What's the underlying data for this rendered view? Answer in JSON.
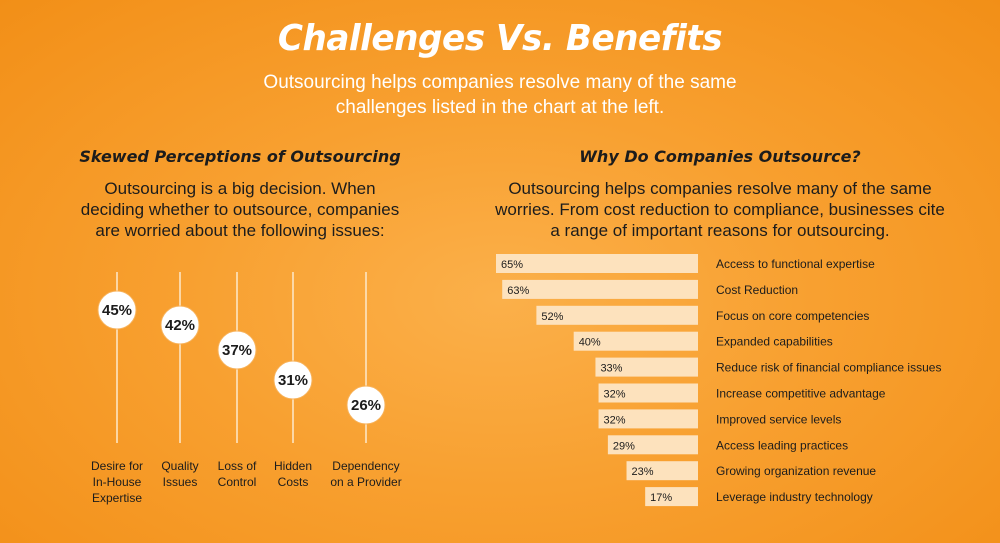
{
  "header": {
    "title": "Challenges Vs. Benefits",
    "subtitle_line1": "Outsourcing helps companies resolve many of the same",
    "subtitle_line2": "challenges listed in the chart at the left."
  },
  "left": {
    "title": "Skewed Perceptions of Outsourcing",
    "desc_line1": "Outsourcing is a big decision. When",
    "desc_line2": "deciding whether to outsource, companies",
    "desc_line3": "are worried about the following issues:"
  },
  "right": {
    "title": "Why Do Companies Outsource?",
    "desc_line1": "Outsourcing helps companies resolve many of the same",
    "desc_line2": "worries. From cost reduction to compliance, businesses cite",
    "desc_line3": "a range of important reasons for outsourcing."
  },
  "colors": {
    "bar_fill": "#fde2bd",
    "line": "#fde9cc",
    "bubble_fill": "#ffffff"
  },
  "chart_data": [
    {
      "type": "scatter",
      "title": "Skewed Perceptions of Outsourcing",
      "categories": [
        [
          "Desire for",
          "In-House",
          "Expertise"
        ],
        [
          "Quality",
          "Issues"
        ],
        [
          "Loss of",
          "Control"
        ],
        [
          "Hidden",
          "Costs"
        ],
        [
          "Dependency",
          "on a Provider"
        ]
      ],
      "values": [
        45,
        42,
        37,
        31,
        26
      ],
      "value_labels": [
        "45%",
        "42%",
        "37%",
        "31%",
        "26%"
      ],
      "ylim": [
        0,
        60
      ]
    },
    {
      "type": "bar",
      "orientation": "horizontal",
      "title": "Why Do Companies Outsource?",
      "categories": [
        "Access to functional expertise",
        "Cost Reduction",
        "Focus on core competencies",
        "Expanded capabilities",
        "Reduce risk of financial compliance issues",
        "Increase competitive advantage",
        "Improved service levels",
        "Access leading practices",
        "Growing organization revenue",
        "Leverage industry technology"
      ],
      "values": [
        65,
        63,
        52,
        40,
        33,
        32,
        32,
        29,
        23,
        17
      ],
      "value_labels": [
        "65%",
        "63%",
        "52%",
        "40%",
        "33%",
        "32%",
        "32%",
        "29%",
        "23%",
        "17%"
      ],
      "xlim": [
        0,
        65
      ]
    }
  ]
}
